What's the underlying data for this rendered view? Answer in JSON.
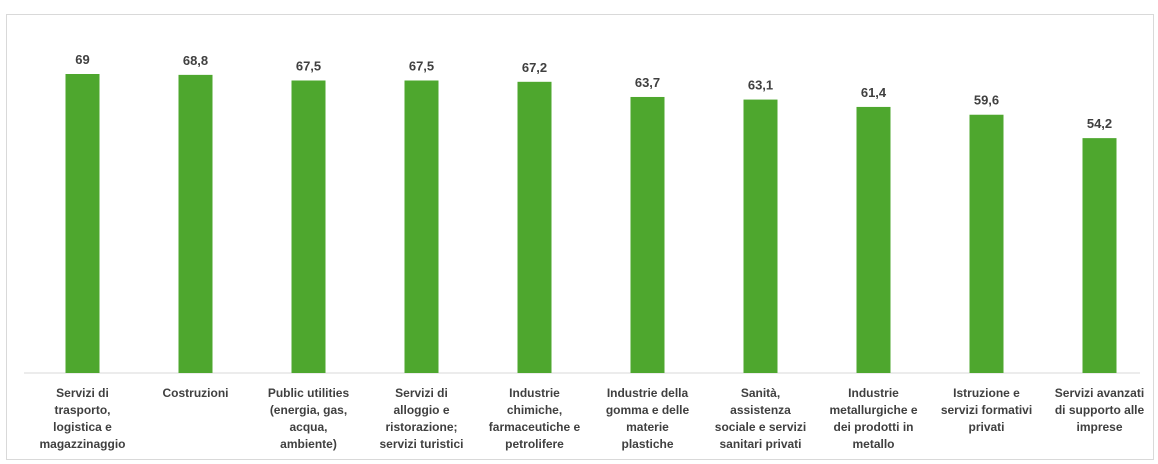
{
  "colors": {
    "bar": "#4ea72e",
    "axis": "#d9d9d9",
    "text": "#404040"
  },
  "chart_data": {
    "type": "bar",
    "categories": [
      "Servizi di trasporto, logistica e magazzinaggio",
      "Costruzioni",
      "Public utilities (energia, gas, acqua, ambiente)",
      "Servizi di alloggio e ristorazione; servizi turistici",
      "Industrie chimiche, farmaceutiche e petrolifere",
      "Industrie della gomma e delle materie plastiche",
      "Sanità, assistenza sociale e servizi sanitari privati",
      "Industrie metallurgiche e dei prodotti in metallo",
      "Istruzione e servizi formativi privati",
      "Servizi avanzati di supporto alle imprese"
    ],
    "category_lines": [
      [
        "Servizi di",
        "trasporto,",
        "logistica e",
        "magazzinaggio"
      ],
      [
        "Costruzioni"
      ],
      [
        "Public utilities",
        "(energia, gas,",
        "acqua,",
        "ambiente)"
      ],
      [
        "Servizi di",
        "alloggio e",
        "ristorazione;",
        "servizi turistici"
      ],
      [
        "Industrie",
        "chimiche,",
        "farmaceutiche e",
        "petrolifere"
      ],
      [
        "Industrie della",
        "gomma e delle",
        "materie",
        "plastiche"
      ],
      [
        "Sanità,",
        "assistenza",
        "sociale e servizi",
        "sanitari privati"
      ],
      [
        "Industrie",
        "metallurgiche e",
        "dei prodotti in",
        "metallo"
      ],
      [
        "Istruzione e",
        "servizi formativi",
        "privati"
      ],
      [
        "Servizi avanzati",
        "di supporto alle",
        "imprese"
      ]
    ],
    "values": [
      69,
      68.8,
      67.5,
      67.5,
      67.2,
      63.7,
      63.1,
      61.4,
      59.6,
      54.2
    ],
    "value_labels": [
      "69",
      "68,8",
      "67,5",
      "67,5",
      "67,2",
      "63,7",
      "63,1",
      "61,4",
      "59,6",
      "54,2"
    ],
    "ylim": [
      0,
      69
    ],
    "grid": false,
    "legend": "none"
  }
}
